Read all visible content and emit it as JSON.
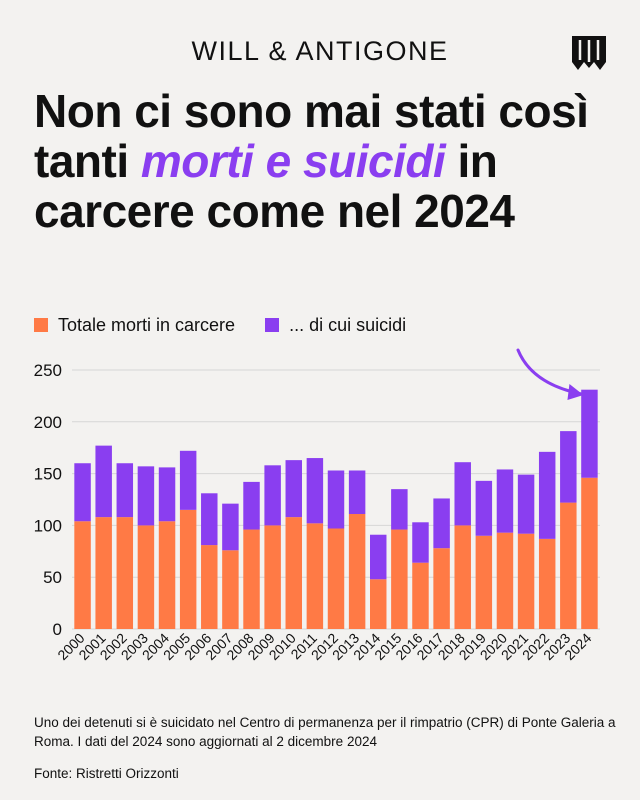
{
  "header": {
    "brand": "WILL & ANTIGONE",
    "title_part1": "Non ci sono mai stati così tanti ",
    "title_highlight": "morti e suicidi",
    "title_part2": " in carcere come nel 2024"
  },
  "colors": {
    "totale": "#ff7a45",
    "suicidi": "#8a3ef0",
    "highlight": "#8a3ef0",
    "background": "#f3f2f0",
    "grid": "#d6d6d6"
  },
  "footer": {
    "note": "Uno dei detenuti si è suicidato nel Centro di permanenza per il rimpatrio (CPR) di Ponte Galeria a Roma. I dati del 2024 sono aggiornati al 2 dicembre 2024",
    "source": "Fonte: Ristretti Orizzonti"
  },
  "chart_data": {
    "type": "bar",
    "stacked": true,
    "categories": [
      "2000",
      "2001",
      "2002",
      "2003",
      "2004",
      "2005",
      "2006",
      "2007",
      "2008",
      "2009",
      "2010",
      "2011",
      "2012",
      "2013",
      "2014",
      "2015",
      "2016",
      "2017",
      "2018",
      "2019",
      "2020",
      "2021",
      "2022",
      "2023",
      "2024"
    ],
    "series": [
      {
        "name": "Totale morti in carcere",
        "color": "#ff7a45",
        "values": [
          104,
          108,
          108,
          100,
          104,
          115,
          81,
          76,
          96,
          100,
          108,
          102,
          97,
          111,
          48,
          96,
          64,
          78,
          100,
          90,
          93,
          92,
          87,
          122,
          146
        ]
      },
      {
        "name": "... di cui suicidi",
        "color": "#8a3ef0",
        "values": [
          56,
          69,
          52,
          57,
          52,
          57,
          50,
          45,
          46,
          58,
          55,
          63,
          56,
          42,
          43,
          39,
          39,
          48,
          61,
          53,
          61,
          57,
          84,
          69,
          85
        ]
      }
    ],
    "yticks": [
      0,
      50,
      100,
      150,
      200,
      250
    ],
    "ylim": [
      0,
      250
    ],
    "grid": true,
    "legend": "top-left",
    "annotation": "arrow pointing to 2024"
  }
}
